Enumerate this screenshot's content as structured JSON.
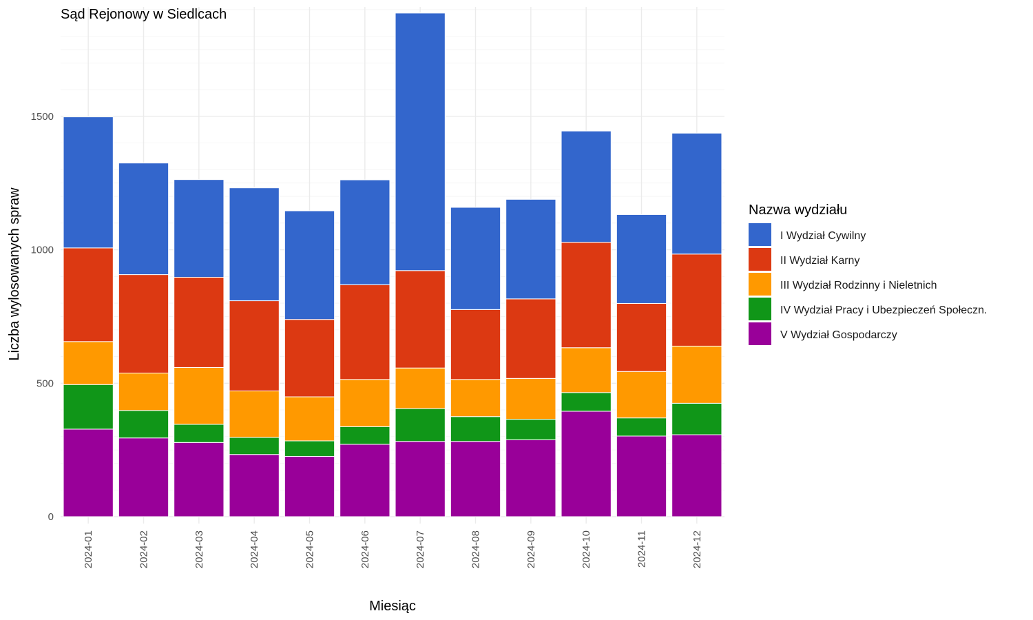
{
  "chart_data": {
    "type": "bar",
    "stacked": true,
    "title": "Sąd Rejonowy w Siedlcach",
    "xlabel": "Miesiąc",
    "ylabel": "Liczba wylosowanych spraw",
    "ylim": [
      0,
      1910
    ],
    "yticks": [
      0,
      500,
      1000,
      1500
    ],
    "grid": true,
    "legend_position": "right",
    "legend_title": "Nazwa wydziału",
    "categories": [
      "2024-01",
      "2024-02",
      "2024-03",
      "2024-04",
      "2024-05",
      "2024-06",
      "2024-07",
      "2024-08",
      "2024-09",
      "2024-10",
      "2024-11",
      "2024-12"
    ],
    "series": [
      {
        "name": "V Wydział Gospodarczy",
        "color": "#990099",
        "values": [
          328,
          295,
          278,
          233,
          226,
          271,
          282,
          282,
          288,
          395,
          302,
          307
        ]
      },
      {
        "name": "IV Wydział Pracy i Ubezpieczeń Społeczn.",
        "color": "#109618",
        "values": [
          167,
          103,
          68,
          64,
          58,
          66,
          123,
          93,
          77,
          70,
          68,
          118
        ]
      },
      {
        "name": "III Wydział Rodzinny i Nieletnich",
        "color": "#ff9900",
        "values": [
          161,
          140,
          213,
          174,
          165,
          177,
          152,
          139,
          153,
          168,
          174,
          214
        ]
      },
      {
        "name": "II Wydział Karny",
        "color": "#dc3912",
        "values": [
          351,
          369,
          338,
          338,
          290,
          355,
          365,
          262,
          298,
          395,
          255,
          345
        ]
      },
      {
        "name": "I Wydział Cywilny",
        "color": "#3366cc",
        "values": [
          491,
          418,
          366,
          423,
          407,
          393,
          965,
          383,
          373,
          417,
          333,
          453
        ]
      }
    ]
  }
}
